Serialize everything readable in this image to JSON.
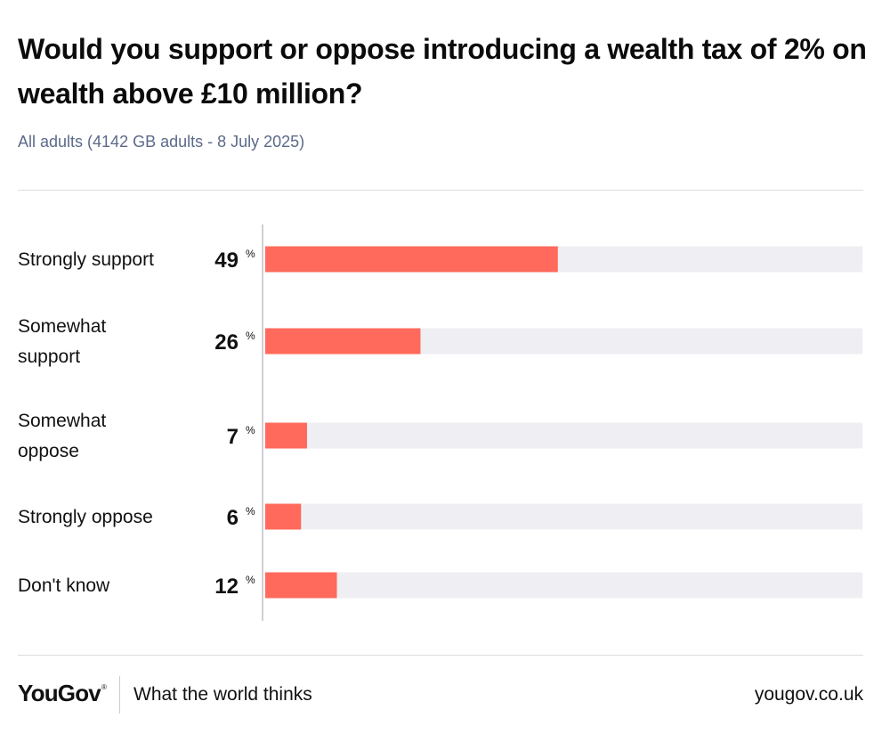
{
  "header": {
    "title": "Would you support or oppose introducing a wealth tax of 2% on wealth above £10 million?",
    "subtitle": "All adults (4142 GB adults - 8 July 2025)"
  },
  "chart_data": {
    "type": "bar",
    "orientation": "horizontal",
    "categories": [
      [
        "Strongly support"
      ],
      [
        "Somewhat",
        "support"
      ],
      [
        "Somewhat",
        "oppose"
      ],
      [
        "Strongly oppose"
      ],
      [
        "Don't know"
      ]
    ],
    "values": [
      49,
      26,
      7,
      6,
      12
    ],
    "unit": "%",
    "xlim": [
      0,
      100
    ],
    "bar_color": "#ff6a5c",
    "track_color": "#efeff3"
  },
  "footer": {
    "brand": "YouGov",
    "brand_mark": "®",
    "tagline": "What the world thinks",
    "url": "yougov.co.uk"
  }
}
